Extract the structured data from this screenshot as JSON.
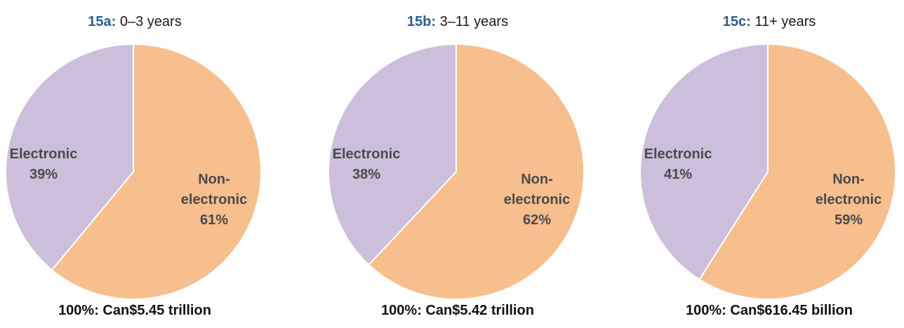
{
  "chart_data": [
    {
      "type": "pie",
      "id": "15a:",
      "subtitle": "0–3 years",
      "slices": [
        {
          "label": "Non-electronic",
          "label_lines": [
            "Non-",
            "electronic"
          ],
          "value": 61,
          "value_label": "61%",
          "color": "#f7be8e"
        },
        {
          "label": "Electronic",
          "label_lines": [
            "Electronic"
          ],
          "value": 39,
          "value_label": "39%",
          "color": "#cbbfdb"
        }
      ],
      "total_label": "100%: Can$5.45 trillion"
    },
    {
      "type": "pie",
      "id": "15b:",
      "subtitle": "3–11 years",
      "slices": [
        {
          "label": "Non-electronic",
          "label_lines": [
            "Non-",
            "electronic"
          ],
          "value": 62,
          "value_label": "62%",
          "color": "#f7be8e"
        },
        {
          "label": "Electronic",
          "label_lines": [
            "Electronic"
          ],
          "value": 38,
          "value_label": "38%",
          "color": "#cbbfdb"
        }
      ],
      "total_label": "100%: Can$5.42 trillion"
    },
    {
      "type": "pie",
      "id": "15c:",
      "subtitle": "11+ years",
      "slices": [
        {
          "label": "Non-electronic",
          "label_lines": [
            "Non-",
            "electronic"
          ],
          "value": 59,
          "value_label": "59%",
          "color": "#f7be8e"
        },
        {
          "label": "Electronic",
          "label_lines": [
            "Electronic"
          ],
          "value": 41,
          "value_label": "41%",
          "color": "#cbbfdb"
        }
      ],
      "total_label": "100%: Can$616.45 billion"
    }
  ]
}
